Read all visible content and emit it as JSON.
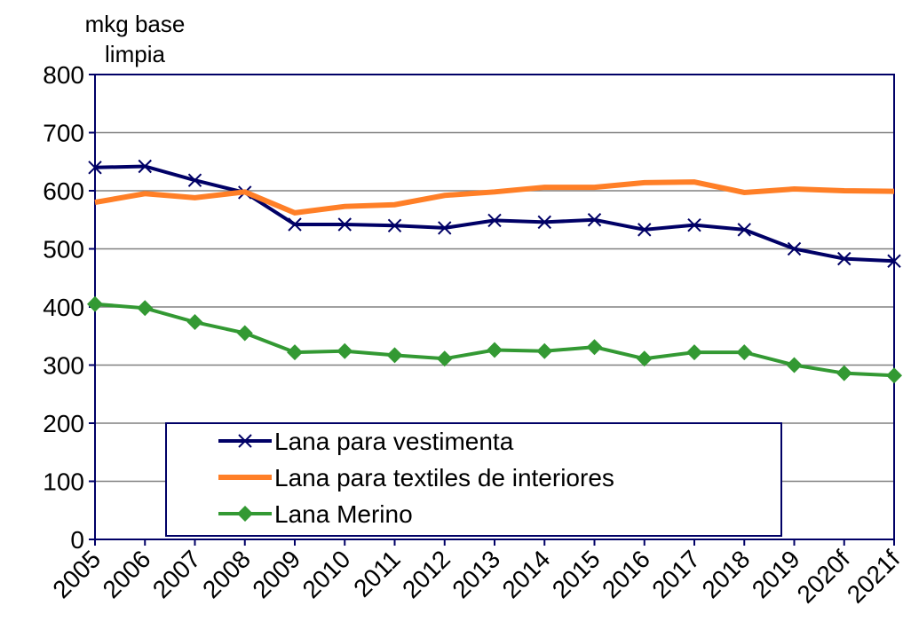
{
  "chart_data": {
    "type": "line",
    "y_label": "mkg base limpia",
    "categories": [
      "2005",
      "2006",
      "2007",
      "2008",
      "2009",
      "2010",
      "2011",
      "2012",
      "2013",
      "2014",
      "2015",
      "2016",
      "2017",
      "2018",
      "2019",
      "2020f",
      "2021f"
    ],
    "series": [
      {
        "name": "Lana para vestimenta",
        "color": "#000066",
        "marker": "x",
        "values": [
          640,
          642,
          618,
          597,
          542,
          542,
          540,
          536,
          549,
          546,
          550,
          533,
          541,
          533,
          500,
          483,
          479
        ]
      },
      {
        "name": "Lana para textiles de interiores",
        "color": "#ff7f27",
        "marker": "none",
        "values": [
          580,
          595,
          588,
          598,
          562,
          573,
          576,
          592,
          598,
          606,
          606,
          614,
          615,
          597,
          603,
          600,
          599
        ]
      },
      {
        "name": "Lana Merino",
        "color": "#339933",
        "marker": "diamond",
        "values": [
          405,
          398,
          374,
          355,
          322,
          324,
          317,
          311,
          326,
          324,
          331,
          311,
          322,
          322,
          300,
          286,
          282
        ]
      }
    ],
    "ylim": [
      0,
      800
    ],
    "yticks": [
      0,
      100,
      200,
      300,
      400,
      500,
      600,
      700,
      800
    ],
    "grid": true
  }
}
